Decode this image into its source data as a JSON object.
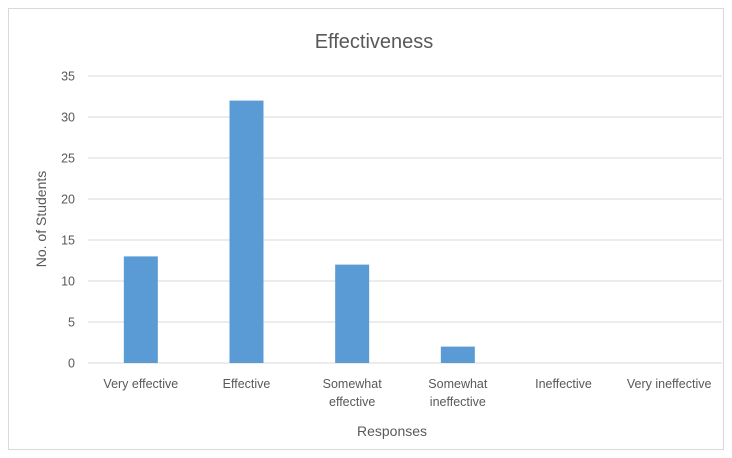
{
  "chart_data": {
    "type": "bar",
    "title": "Effectiveness",
    "xlabel": "Responses",
    "ylabel": "No. of Students",
    "categories": [
      [
        "Very effective"
      ],
      [
        "Effective"
      ],
      [
        "Somewhat",
        "effective"
      ],
      [
        "Somewhat",
        "ineffective"
      ],
      [
        "Ineffective"
      ],
      [
        "Very ineffective"
      ]
    ],
    "values": [
      13,
      32,
      12,
      2,
      0,
      0
    ],
    "ylim": [
      0,
      35
    ],
    "yticks": [
      "0",
      "5",
      "10",
      "15",
      "20",
      "25",
      "30",
      "35"
    ],
    "grid": true,
    "legend": "none",
    "colors": {
      "bar": "#5B9BD5",
      "grid": "#d9d9d9",
      "text": "#595959"
    }
  }
}
